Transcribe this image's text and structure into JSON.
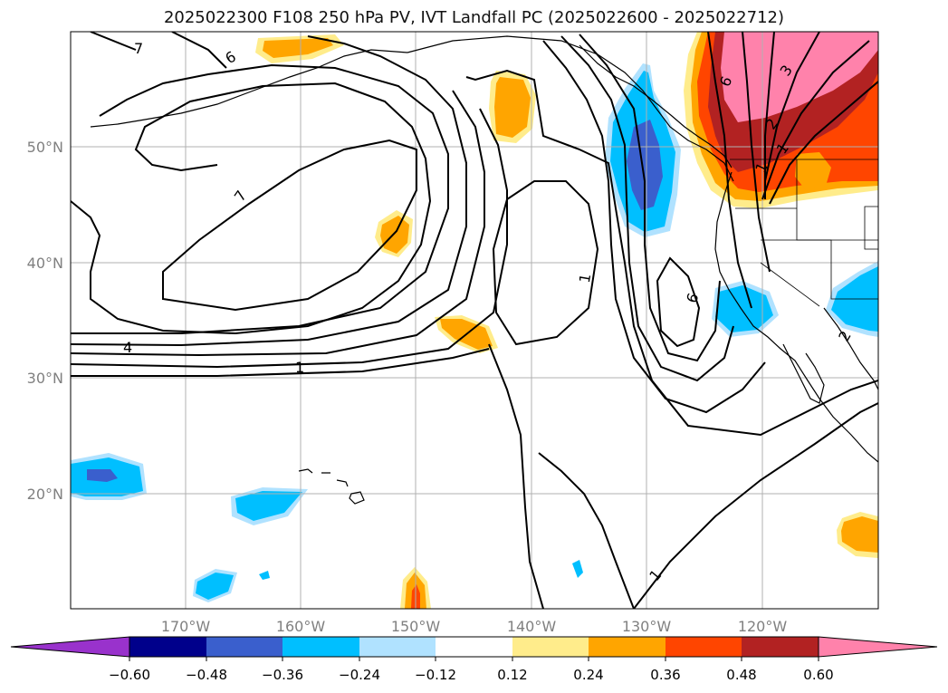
{
  "title": "2025022300 F108 250 hPa PV, IVT Landfall PC (2025022600 - 2025022712)",
  "map": {
    "lon_labels": [
      "170°W",
      "160°W",
      "150°W",
      "140°W",
      "130°W",
      "120°W"
    ],
    "lat_labels": [
      "50°N",
      "40°N",
      "30°N",
      "20°N"
    ],
    "axis_label_color": "#808080",
    "contour_labels": [
      "7",
      "6",
      "7",
      "4",
      "1",
      "1",
      "6",
      "1",
      "6",
      "3",
      "2",
      "1",
      "1",
      "2"
    ]
  },
  "colorbar": {
    "colors": [
      "#9932cc",
      "#00008b",
      "#3a5fcd",
      "#00bfff",
      "#b0e2ff",
      "#ffffff",
      "#ffec8b",
      "#ffa500",
      "#ff4500",
      "#b22222",
      "#ff82ab"
    ],
    "tick_labels": [
      "−0.60",
      "−0.48",
      "−0.36",
      "−0.24",
      "−0.12",
      "0.12",
      "0.24",
      "0.36",
      "0.48",
      "0.60"
    ]
  }
}
